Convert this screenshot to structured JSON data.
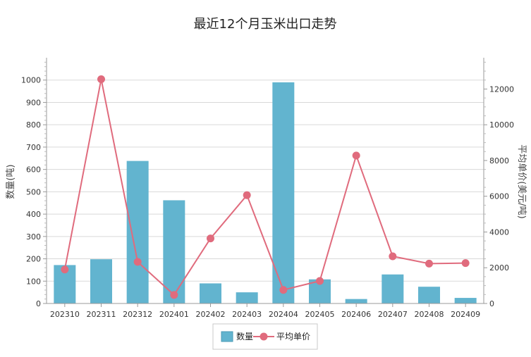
{
  "chart_data": {
    "type": "bar+line",
    "title": "最近12个月玉米出口走势",
    "categories": [
      "202310",
      "202311",
      "202312",
      "202401",
      "202402",
      "202403",
      "202404",
      "202405",
      "202406",
      "202407",
      "202408",
      "202409"
    ],
    "series": [
      {
        "name": "数量",
        "type": "bar",
        "axis": "left",
        "color": "#62b4cf",
        "values": [
          172,
          198,
          638,
          462,
          90,
          50,
          990,
          108,
          20,
          130,
          75,
          25
        ]
      },
      {
        "name": "平均单价",
        "type": "line",
        "axis": "right",
        "color": "#e06b7d",
        "values": [
          1900,
          12550,
          2330,
          480,
          3640,
          6060,
          760,
          1260,
          8280,
          2640,
          2230,
          2260
        ]
      }
    ],
    "y_left": {
      "label": "数量(吨)",
      "min": 0,
      "max": 1000,
      "step": 100,
      "axis_max": 1100
    },
    "y_right": {
      "label": "平均单价(美元/吨)",
      "min": 0,
      "max": 12000,
      "step": 2000,
      "axis_max": 13750
    },
    "grid": true,
    "legend": "bottom-center"
  }
}
